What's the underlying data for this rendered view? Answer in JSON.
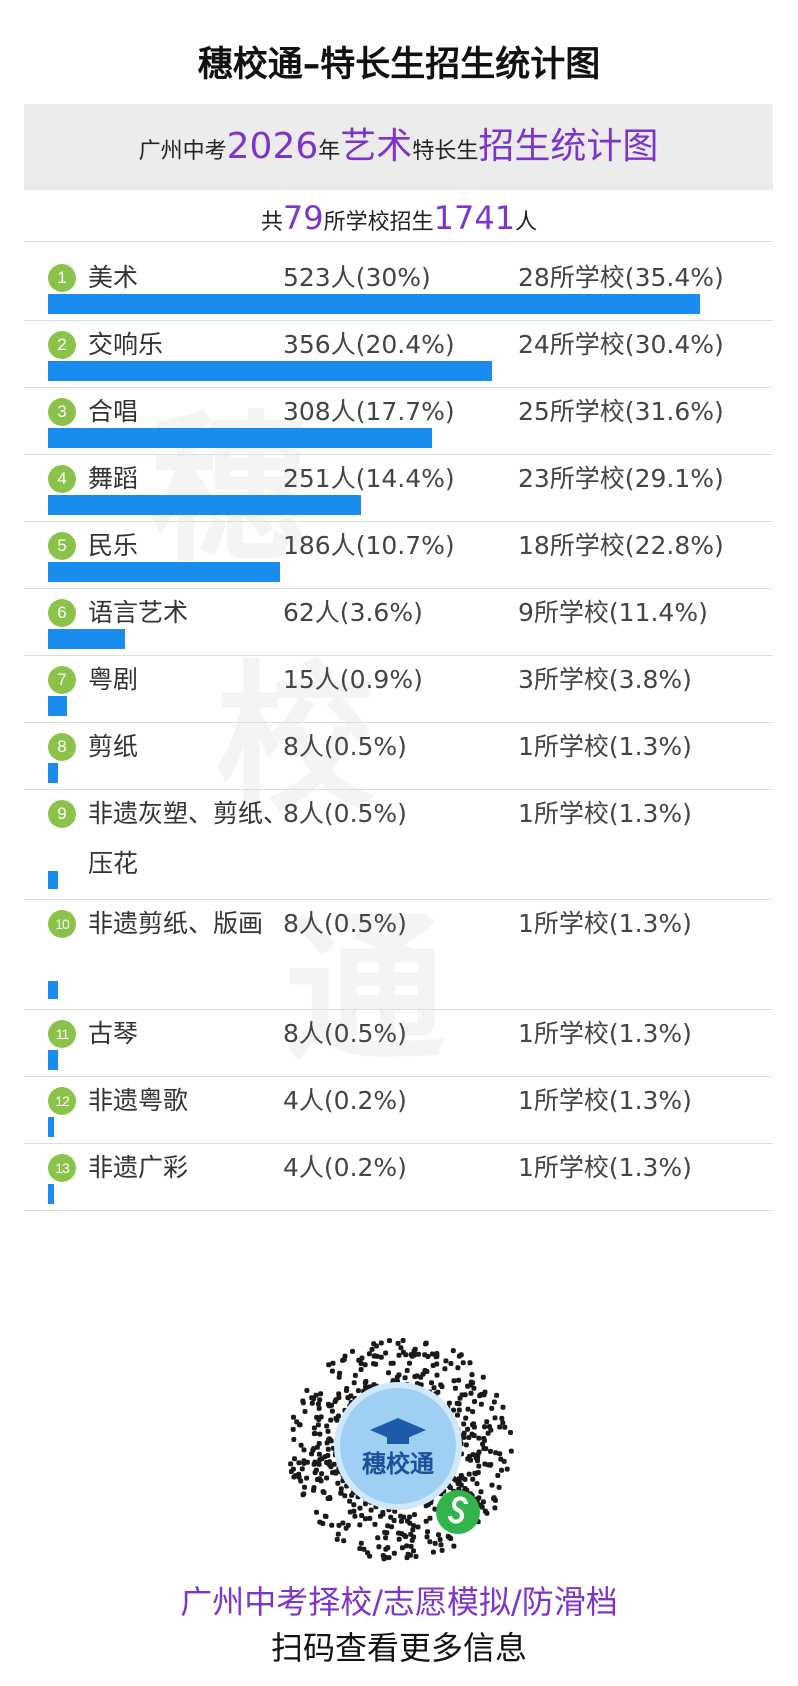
{
  "title": "穗校通–特长生招生统计图",
  "header": {
    "prefix": "广州中考",
    "year": "2026",
    "year_suffix": "年",
    "category": "艺术",
    "middle": "特长生",
    "tail": "招生统计图"
  },
  "summary": {
    "prefix": "共",
    "schools": "79",
    "middle": "所学校招生",
    "people": "1741",
    "suffix": "人"
  },
  "watermark": [
    "穗",
    "校",
    "通"
  ],
  "chart_data": {
    "type": "bar",
    "orientation": "horizontal",
    "total_people": 1741,
    "total_schools": 79,
    "categories": [
      "美术",
      "交响乐",
      "合唱",
      "舞蹈",
      "民乐",
      "语言艺术",
      "粤剧",
      "剪纸",
      "非遗灰塑、剪纸、压花",
      "非遗剪纸、版画",
      "古琴",
      "非遗粤歌",
      "非遗广彩"
    ],
    "values": [
      523,
      356,
      308,
      251,
      186,
      62,
      15,
      8,
      8,
      8,
      8,
      4,
      4
    ],
    "rows": [
      {
        "rank": "1",
        "name": "美术",
        "people": 523,
        "count_label": "523人(30%)",
        "school_label": "28所学校(35.4%)"
      },
      {
        "rank": "2",
        "name": "交响乐",
        "people": 356,
        "count_label": "356人(20.4%)",
        "school_label": "24所学校(30.4%)"
      },
      {
        "rank": "3",
        "name": "合唱",
        "people": 308,
        "count_label": "308人(17.7%)",
        "school_label": "25所学校(31.6%)"
      },
      {
        "rank": "4",
        "name": "舞蹈",
        "people": 251,
        "count_label": "251人(14.4%)",
        "school_label": "23所学校(29.1%)"
      },
      {
        "rank": "5",
        "name": "民乐",
        "people": 186,
        "count_label": "186人(10.7%)",
        "school_label": "18所学校(22.8%)"
      },
      {
        "rank": "6",
        "name": "语言艺术",
        "people": 62,
        "count_label": "62人(3.6%)",
        "school_label": "9所学校(11.4%)"
      },
      {
        "rank": "7",
        "name": "粤剧",
        "people": 15,
        "count_label": "15人(0.9%)",
        "school_label": "3所学校(3.8%)"
      },
      {
        "rank": "8",
        "name": "剪纸",
        "people": 8,
        "count_label": "8人(0.5%)",
        "school_label": "1所学校(1.3%)"
      },
      {
        "rank": "9",
        "name": "非遗灰塑、剪纸、压花",
        "people": 8,
        "count_label": "8人(0.5%)",
        "school_label": "1所学校(1.3%)"
      },
      {
        "rank": "10",
        "name": "非遗剪纸、版画",
        "people": 8,
        "count_label": "8人(0.5%)",
        "school_label": "1所学校(1.3%)"
      },
      {
        "rank": "11",
        "name": "古琴",
        "people": 8,
        "count_label": "8人(0.5%)",
        "school_label": "1所学校(1.3%)"
      },
      {
        "rank": "12",
        "name": "非遗粤歌",
        "people": 4,
        "count_label": "4人(0.2%)",
        "school_label": "1所学校(1.3%)"
      },
      {
        "rank": "13",
        "name": "非遗广彩",
        "people": 4,
        "count_label": "4人(0.2%)",
        "school_label": "1所学校(1.3%)"
      }
    ],
    "bar_color": "#1a8cf0",
    "rank_badge_color": "#8bc34a",
    "highlight_color": "#7d35c9"
  },
  "qr": {
    "logo_text": "穗校通",
    "mini_program_icon": "wechat-mini-program-icon"
  },
  "footer": {
    "line1": "广州中考择校/志愿模拟/防滑档",
    "line2": "扫码查看更多信息"
  }
}
